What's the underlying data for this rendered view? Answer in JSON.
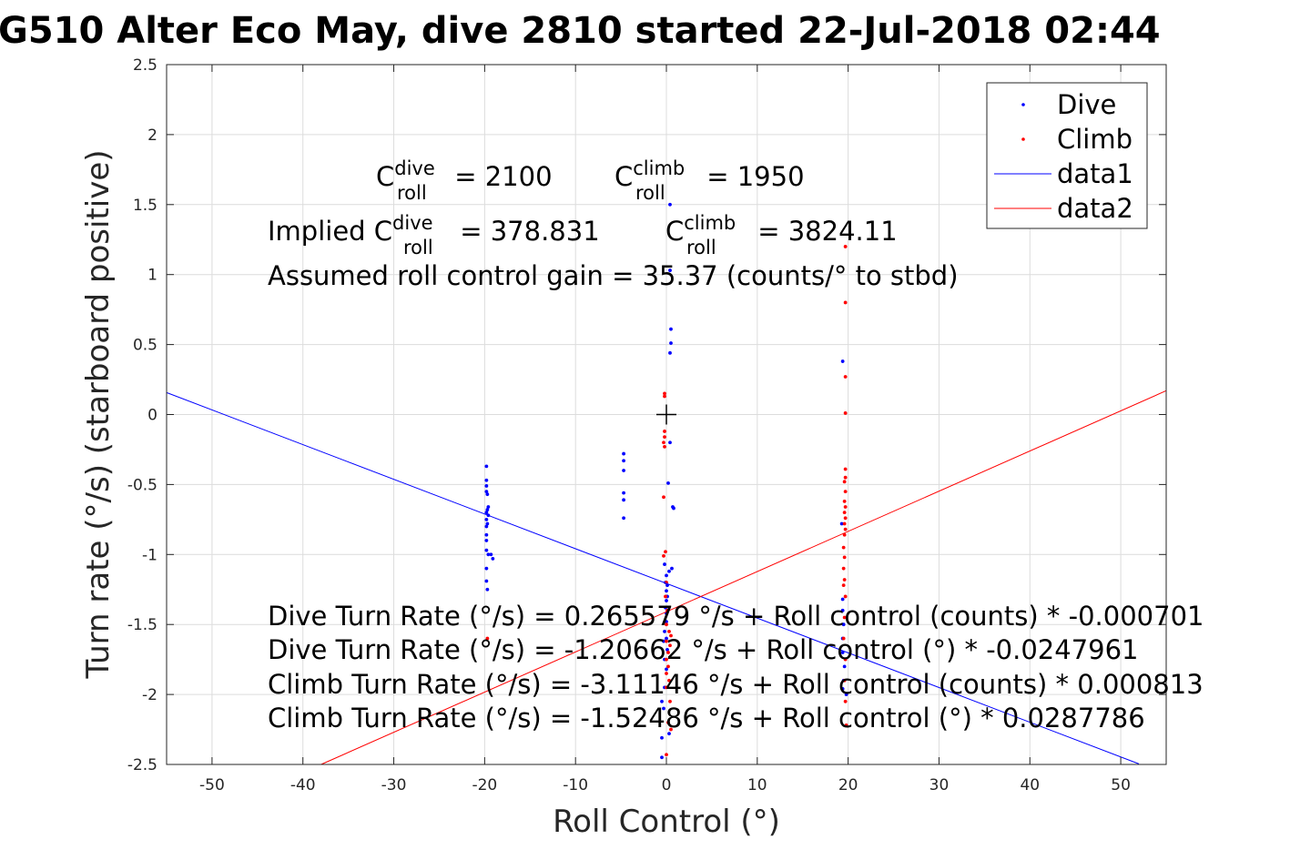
{
  "chart_data": {
    "type": "scatter",
    "title": "G510 Alter Eco May, dive 2810 started 22-Jul-2018 02:44",
    "xlabel": "Roll Control (°)",
    "ylabel": "Turn rate (°/s) (starboard positive)",
    "xlim": [
      -55,
      55
    ],
    "ylim": [
      -2.5,
      2.5
    ],
    "grid": true,
    "xticks": [
      "-50",
      "-40",
      "-30",
      "-20",
      "-10",
      "0",
      "10",
      "20",
      "30",
      "40",
      "50"
    ],
    "yticks": [
      "2.5",
      "2",
      "1.5",
      "1",
      "0.5",
      "0",
      "-0.5",
      "-1",
      "-1.5",
      "-2",
      "-2.5"
    ],
    "legend": {
      "placement": "top-right",
      "entries": [
        "Dive",
        "Climb",
        "data1",
        "data2"
      ]
    },
    "colors": {
      "dive": "#0000ff",
      "climb": "#ff0000"
    },
    "series": [
      {
        "name": "Dive",
        "kind": "points",
        "color": "#0000ff",
        "points": [
          [
            -19.8,
            -0.37
          ],
          [
            -19.8,
            -0.47
          ],
          [
            -19.8,
            -0.51
          ],
          [
            -19.8,
            -0.55
          ],
          [
            -19.7,
            -0.57
          ],
          [
            -19.6,
            -0.66
          ],
          [
            -19.7,
            -0.68
          ],
          [
            -19.8,
            -0.7
          ],
          [
            -19.6,
            -0.72
          ],
          [
            -19.8,
            -0.75
          ],
          [
            -19.7,
            -0.78
          ],
          [
            -19.8,
            -0.8
          ],
          [
            -19.8,
            -0.86
          ],
          [
            -19.8,
            -0.9
          ],
          [
            -19.8,
            -0.97
          ],
          [
            -19.6,
            -1.0
          ],
          [
            -19.3,
            -1.0
          ],
          [
            -19.1,
            -1.03
          ],
          [
            -19.8,
            -1.1
          ],
          [
            -19.8,
            -1.19
          ],
          [
            -19.7,
            -1.25
          ],
          [
            -4.7,
            -0.28
          ],
          [
            -4.7,
            -0.33
          ],
          [
            -4.7,
            -0.4
          ],
          [
            -4.7,
            -0.56
          ],
          [
            -4.7,
            -0.61
          ],
          [
            -4.7,
            -0.74
          ],
          [
            0.4,
            1.5
          ],
          [
            0.4,
            1.03
          ],
          [
            0.5,
            0.61
          ],
          [
            0.5,
            0.51
          ],
          [
            0.4,
            0.44
          ],
          [
            0.4,
            -0.2
          ],
          [
            0.2,
            -0.49
          ],
          [
            0.7,
            -0.66
          ],
          [
            0.8,
            -0.67
          ],
          [
            -0.2,
            -1.07
          ],
          [
            0.6,
            -1.1
          ],
          [
            0.3,
            -1.12
          ],
          [
            0.0,
            -1.15
          ],
          [
            -0.1,
            -1.2
          ],
          [
            0.1,
            -1.22
          ],
          [
            0.0,
            -1.26
          ],
          [
            0.1,
            -1.3
          ],
          [
            0.0,
            -1.33
          ],
          [
            -0.1,
            -1.38
          ],
          [
            0.0,
            -1.42
          ],
          [
            0.0,
            -1.48
          ],
          [
            -0.2,
            -1.55
          ],
          [
            0.0,
            -1.6
          ],
          [
            -0.3,
            -1.62
          ],
          [
            0.1,
            -1.68
          ],
          [
            -0.2,
            -1.75
          ],
          [
            0.0,
            -1.82
          ],
          [
            -0.2,
            -1.95
          ],
          [
            -0.5,
            -2.05
          ],
          [
            -0.3,
            -2.1
          ],
          [
            0.3,
            -2.28
          ],
          [
            -0.5,
            -2.31
          ],
          [
            -0.5,
            -2.45
          ],
          [
            19.4,
            0.38
          ],
          [
            19.3,
            -0.78
          ],
          [
            19.4,
            -1.32
          ],
          [
            19.4,
            -1.4
          ],
          [
            19.5,
            -1.5
          ],
          [
            19.4,
            -1.6
          ],
          [
            19.4,
            -1.7
          ],
          [
            19.6,
            -1.8
          ],
          [
            19.5,
            -1.9
          ],
          [
            19.4,
            -1.96
          ],
          [
            19.8,
            -2.0
          ]
        ]
      },
      {
        "name": "Climb",
        "kind": "points",
        "color": "#ff0000",
        "points": [
          [
            -0.2,
            0.15
          ],
          [
            -0.2,
            0.13
          ],
          [
            -0.2,
            -0.12
          ],
          [
            -0.2,
            -0.16
          ],
          [
            -0.3,
            -0.2
          ],
          [
            -0.2,
            -0.23
          ],
          [
            -0.3,
            -0.59
          ],
          [
            -0.1,
            -0.98
          ],
          [
            -0.3,
            -1.01
          ],
          [
            0.0,
            -1.2
          ],
          [
            -0.1,
            -1.3
          ],
          [
            0.1,
            -1.4
          ],
          [
            0.0,
            -1.5
          ],
          [
            0.3,
            -1.55
          ],
          [
            0.5,
            -1.58
          ],
          [
            0.0,
            -1.62
          ],
          [
            0.4,
            -1.65
          ],
          [
            0.2,
            -1.7
          ],
          [
            0.0,
            -1.75
          ],
          [
            0.2,
            -1.8
          ],
          [
            0.0,
            -1.85
          ],
          [
            0.3,
            -1.9
          ],
          [
            0.0,
            -1.95
          ],
          [
            0.4,
            -2.05
          ],
          [
            0.2,
            -2.2
          ],
          [
            0.5,
            -2.25
          ],
          [
            0.0,
            -2.43
          ],
          [
            -19.7,
            -1.6
          ],
          [
            19.7,
            1.2
          ],
          [
            19.7,
            0.8
          ],
          [
            19.7,
            0.27
          ],
          [
            19.7,
            0.01
          ],
          [
            19.7,
            -0.39
          ],
          [
            19.7,
            -0.45
          ],
          [
            19.6,
            -0.48
          ],
          [
            19.7,
            -0.55
          ],
          [
            19.6,
            -0.62
          ],
          [
            19.7,
            -0.66
          ],
          [
            19.6,
            -0.7
          ],
          [
            19.7,
            -0.74
          ],
          [
            19.6,
            -0.78
          ],
          [
            19.7,
            -0.82
          ],
          [
            19.6,
            -0.86
          ],
          [
            19.5,
            -0.95
          ],
          [
            19.6,
            -1.02
          ],
          [
            19.5,
            -1.1
          ],
          [
            19.6,
            -1.18
          ],
          [
            19.5,
            -1.22
          ],
          [
            19.7,
            -1.3
          ],
          [
            19.6,
            -1.45
          ],
          [
            19.5,
            -1.6
          ],
          [
            19.7,
            -1.75
          ],
          [
            19.6,
            -1.9
          ],
          [
            19.7,
            -2.05
          ],
          [
            19.8,
            -2.22
          ]
        ]
      },
      {
        "name": "data1",
        "kind": "line",
        "color": "#0000ff",
        "points": [
          [
            -55,
            0.157
          ],
          [
            52,
            -2.496
          ]
        ]
      },
      {
        "name": "data2",
        "kind": "line",
        "color": "#ff0000",
        "points": [
          [
            -38,
            -2.5
          ],
          [
            55,
            0.17
          ]
        ]
      }
    ],
    "marker_origin": "+",
    "annotations": {
      "c_dive": {
        "base": "C",
        "sup": "dive",
        "sub": "roll",
        "value": " = 2100"
      },
      "c_climb": {
        "base": "C",
        "sup": "climb",
        "sub": "roll",
        "value": " = 1950"
      },
      "implied_dive": {
        "prefix": "Implied C",
        "sup": "dive",
        "sub": "roll",
        "value": " = 378.831"
      },
      "implied_climb": {
        "base": "C",
        "sup": "climb",
        "sub": "roll",
        "value": " = 3824.11"
      },
      "gain": "Assumed roll control gain = 35.37 (counts/° to stbd)",
      "eq1": "Dive Turn Rate (°/s) = 0.265579 °/s + Roll control (counts) * -0.000701",
      "eq2": "Dive Turn Rate (°/s) = -1.20662 °/s + Roll control (°) * -0.0247961",
      "eq3": "Climb Turn Rate (°/s) = -3.11146 °/s + Roll control (counts) * 0.000813",
      "eq4": "Climb Turn Rate (°/s) = -1.52486 °/s + Roll control (°) * 0.0287786"
    }
  }
}
